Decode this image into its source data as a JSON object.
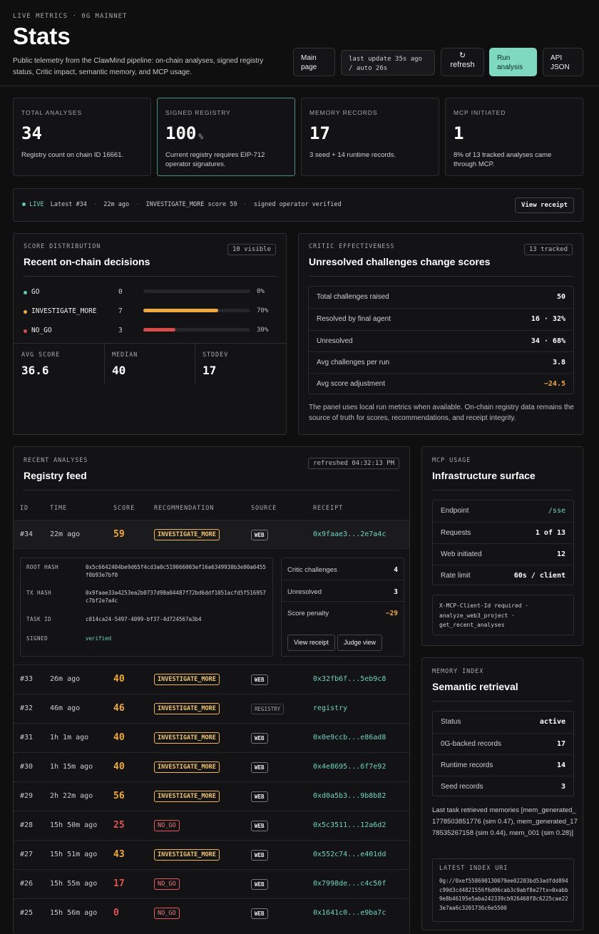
{
  "header": {
    "eyebrow": "LIVE METRICS · 0G MAINNET",
    "title": "Stats",
    "subtitle": "Public telemetry from the ClawMind pipeline: on-chain analyses, signed registry status, Critic impact, semantic memory, and MCP usage.",
    "buttons": {
      "main_page": "Main page",
      "last_update": "last update 35s ago / auto 26s",
      "refresh": "refresh",
      "run_analysis": "Run analysis",
      "api_json": "API JSON"
    }
  },
  "stats": [
    {
      "label": "TOTAL ANALYSES",
      "value": "34",
      "unit": "",
      "desc": "Registry count on chain ID 16661."
    },
    {
      "label": "SIGNED REGISTRY",
      "value": "100",
      "unit": "%",
      "desc": "Current registry requires EIP-712 operator signatures."
    },
    {
      "label": "MEMORY RECORDS",
      "value": "17",
      "unit": "",
      "desc": "3 seed + 14 runtime records."
    },
    {
      "label": "MCP INITIATED",
      "value": "1",
      "unit": "",
      "desc": "8% of 13 tracked analyses came through MCP."
    }
  ],
  "live": {
    "badge": "LIVE",
    "latest": "Latest #34",
    "ago": "22m ago",
    "rec": "INVESTIGATE_MORE score 59",
    "signed": "signed operator verified",
    "button": "View receipt"
  },
  "score_dist": {
    "eyebrow": "SCORE DISTRIBUTION",
    "title": "Recent on-chain decisions",
    "pill": "10 visible",
    "rows": [
      {
        "label": "GO",
        "count": "0",
        "pct_label": "0%",
        "fraction": 0,
        "color": "#5fc9b3"
      },
      {
        "label": "INVESTIGATE_MORE",
        "count": "7",
        "pct_label": "70%",
        "fraction": 0.7,
        "color": "#f0a93b"
      },
      {
        "label": "NO_GO",
        "count": "3",
        "pct_label": "30%",
        "fraction": 0.3,
        "color": "#d94b4b"
      }
    ],
    "stats": [
      {
        "label": "AVG SCORE",
        "value": "36.6"
      },
      {
        "label": "MEDIAN",
        "value": "40"
      },
      {
        "label": "STDDEV",
        "value": "17"
      }
    ]
  },
  "critic": {
    "eyebrow": "CRITIC EFFECTIVENESS",
    "title": "Unresolved challenges change scores",
    "pill": "13 tracked",
    "rows": [
      {
        "k": "Total challenges raised",
        "v": "50"
      },
      {
        "k": "Resolved by final agent",
        "v": "16 · 32%"
      },
      {
        "k": "Unresolved",
        "v": "34 · 68%"
      },
      {
        "k": "Avg challenges per run",
        "v": "3.8"
      },
      {
        "k": "Avg score adjustment",
        "v": "−24.5"
      }
    ],
    "note": "The panel uses local run metrics when available. On-chain registry data remains the source of truth for scores, recommendations, and receipt integrity."
  },
  "feed": {
    "eyebrow": "RECENT ANALYSES",
    "title": "Registry feed",
    "pill": "refreshed 04:32:13 PM",
    "columns": [
      "ID",
      "TIME",
      "SCORE",
      "RECOMMENDATION",
      "SOURCE",
      "RECEIPT"
    ],
    "expanded": {
      "id": "#34",
      "time": "22m ago",
      "score": "59",
      "rec": "INVESTIGATE_MORE",
      "source": "WEB",
      "receipt": "0x9faae3...2e7a4c",
      "details": [
        {
          "k": "ROOT HASH",
          "v": "0x5c6642404be9d65f4cd3a0c519066003ef16a6349930b3e00a0455f0b93e7bf0"
        },
        {
          "k": "TX HASH",
          "v": "0x9faae33a4253ea2b0737d98a04487f72bd6ddf1051acfd5f516957c7bf2e7a4c"
        },
        {
          "k": "TASK ID",
          "v": "c014ca24-5497-4099-bf37-4d724567a3b4"
        },
        {
          "k": "SIGNED",
          "v": "verified"
        }
      ],
      "critic": [
        {
          "k": "Critic challenges",
          "v": "4"
        },
        {
          "k": "Unresolved",
          "v": "3"
        },
        {
          "k": "Score penalty",
          "v": "−29"
        }
      ],
      "view_receipt": "View receipt",
      "judge_view": "Judge view"
    },
    "rows": [
      {
        "id": "#33",
        "time": "26m ago",
        "score": "40",
        "rec": "INVESTIGATE_MORE",
        "source": "WEB",
        "receipt": "0x32fb6f...5eb9c8"
      },
      {
        "id": "#32",
        "time": "46m ago",
        "score": "46",
        "rec": "INVESTIGATE_MORE",
        "source": "REGISTRY",
        "receipt": "registry"
      },
      {
        "id": "#31",
        "time": "1h 1m ago",
        "score": "40",
        "rec": "INVESTIGATE_MORE",
        "source": "WEB",
        "receipt": "0x0e9ccb...e86ad8"
      },
      {
        "id": "#30",
        "time": "1h 15m ago",
        "score": "40",
        "rec": "INVESTIGATE_MORE",
        "source": "WEB",
        "receipt": "0x4e8695...6f7e92"
      },
      {
        "id": "#29",
        "time": "2h 22m ago",
        "score": "56",
        "rec": "INVESTIGATE_MORE",
        "source": "WEB",
        "receipt": "0xd0a5b3...9b8b82"
      },
      {
        "id": "#28",
        "time": "15h 50m ago",
        "score": "25",
        "rec": "NO_GO",
        "source": "WEB",
        "receipt": "0x5c3511...12a6d2"
      },
      {
        "id": "#27",
        "time": "15h 51m ago",
        "score": "43",
        "rec": "INVESTIGATE_MORE",
        "source": "WEB",
        "receipt": "0x552c74...e401dd"
      },
      {
        "id": "#26",
        "time": "15h 55m ago",
        "score": "17",
        "rec": "NO_GO",
        "source": "WEB",
        "receipt": "0x7998de...c4c50f"
      },
      {
        "id": "#25",
        "time": "15h 56m ago",
        "score": "0",
        "rec": "NO_GO",
        "source": "WEB",
        "receipt": "0x1641c0...e9ba7c"
      }
    ]
  },
  "mcp": {
    "eyebrow": "MCP USAGE",
    "title": "Infrastructure surface",
    "rows": [
      {
        "k": "Endpoint",
        "v": "/sse"
      },
      {
        "k": "Requests",
        "v": "1 of 13"
      },
      {
        "k": "Web initiated",
        "v": "12"
      },
      {
        "k": "Rate limit",
        "v": "60s / client"
      }
    ],
    "code": "X-MCP-Client-Id required · analyze_web3_project · get_recent_analyses"
  },
  "memory": {
    "eyebrow": "MEMORY INDEX",
    "title": "Semantic retrieval",
    "rows": [
      {
        "k": "Status",
        "v": "active"
      },
      {
        "k": "0G-backed records",
        "v": "17"
      },
      {
        "k": "Runtime records",
        "v": "14"
      },
      {
        "k": "Seed records",
        "v": "3"
      }
    ],
    "last_task": "Last task retrieved memories [mem_generated_1778503851776 (sim 0.47), mem_generated_1778535267158 (sim 0.44), mem_001 (sim 0.28)]",
    "uri_label": "LATEST INDEX URI",
    "uri": "0g://0xef558690130079ee02203bd53adfdd894c99d3cd4821556f6d06cab3c9abf8e27tx=0xabb9e8b46195e5aba242339cb926468f8c6225cae223e7aa6c3201736c6e5500"
  }
}
